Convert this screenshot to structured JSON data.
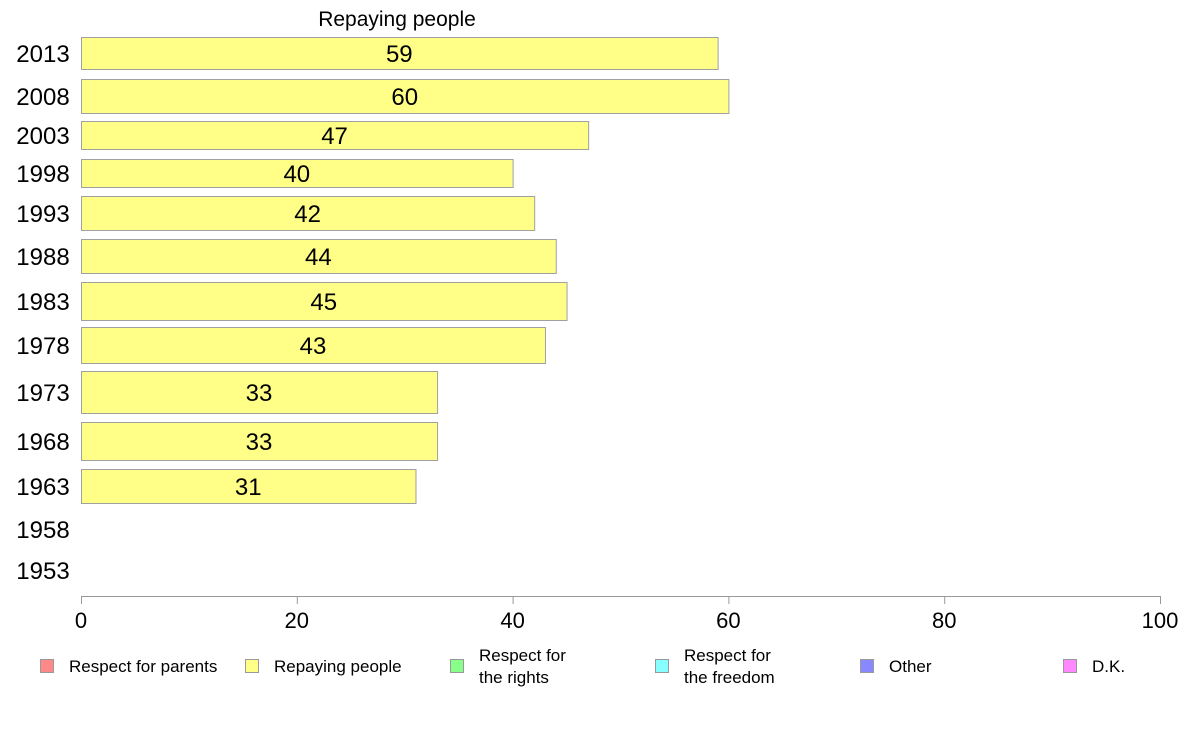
{
  "chart_data": {
    "type": "bar",
    "orientation": "horizontal",
    "title": "Repaying people",
    "categories": [
      "2013",
      "2008",
      "2003",
      "1998",
      "1993",
      "1988",
      "1983",
      "1978",
      "1973",
      "1968",
      "1963",
      "1958",
      "1953"
    ],
    "series": [
      {
        "name": "Repaying people",
        "color": "#ffff88",
        "values": [
          59,
          60,
          47,
          40,
          42,
          44,
          45,
          43,
          33,
          33,
          31,
          null,
          null
        ],
        "labels": [
          "59",
          "60",
          "47",
          "40",
          "42",
          "44",
          "45",
          "43",
          "33",
          "33",
          "31",
          "",
          ""
        ]
      }
    ],
    "xlim": [
      0,
      100
    ],
    "x_ticks": [
      "0",
      "20",
      "40",
      "60",
      "80",
      "100"
    ],
    "grid": false,
    "legend_placement": "bottom",
    "legend": [
      {
        "label": "Respect for parents",
        "color": "#ff8888"
      },
      {
        "label": "Repaying people",
        "color": "#ffff88"
      },
      {
        "label": "Respect for the rights",
        "lines": [
          "Respect for",
          "the rights"
        ],
        "color": "#88ff88"
      },
      {
        "label": "Respect for the freedom",
        "lines": [
          "Respect for",
          "the freedom"
        ],
        "color": "#88ffff"
      },
      {
        "label": "Other",
        "color": "#8888ff"
      },
      {
        "label": "D.K.",
        "color": "#ff88ff"
      }
    ]
  }
}
